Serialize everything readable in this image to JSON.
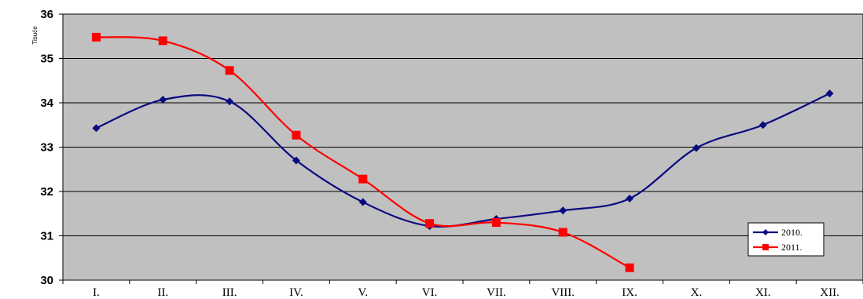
{
  "chart_data": {
    "type": "line",
    "ylabel": "Tisuće",
    "categories": [
      "I.",
      "II.",
      "III.",
      "IV.",
      "V.",
      "VI.",
      "VII.",
      "VIII.",
      "IX.",
      "X.",
      "XI.",
      "XII."
    ],
    "ylim": [
      30,
      36
    ],
    "yticks": [
      30,
      31,
      32,
      33,
      34,
      35,
      36
    ],
    "grid": true,
    "legend_position": "bottom-right",
    "series": [
      {
        "name": "2010.",
        "color": "#0a0a80",
        "marker": "diamond",
        "values": [
          33.43,
          34.07,
          34.03,
          32.7,
          31.76,
          31.22,
          31.38,
          31.57,
          31.84,
          32.98,
          33.5,
          34.21
        ]
      },
      {
        "name": "2011.",
        "color": "#ff0000",
        "marker": "square",
        "values": [
          35.48,
          35.4,
          34.73,
          33.27,
          32.28,
          31.28,
          31.3,
          31.08,
          30.28,
          null,
          null,
          null
        ]
      }
    ]
  },
  "colors": {
    "plot_background": "#c0c0c0",
    "gridline": "#000000"
  }
}
